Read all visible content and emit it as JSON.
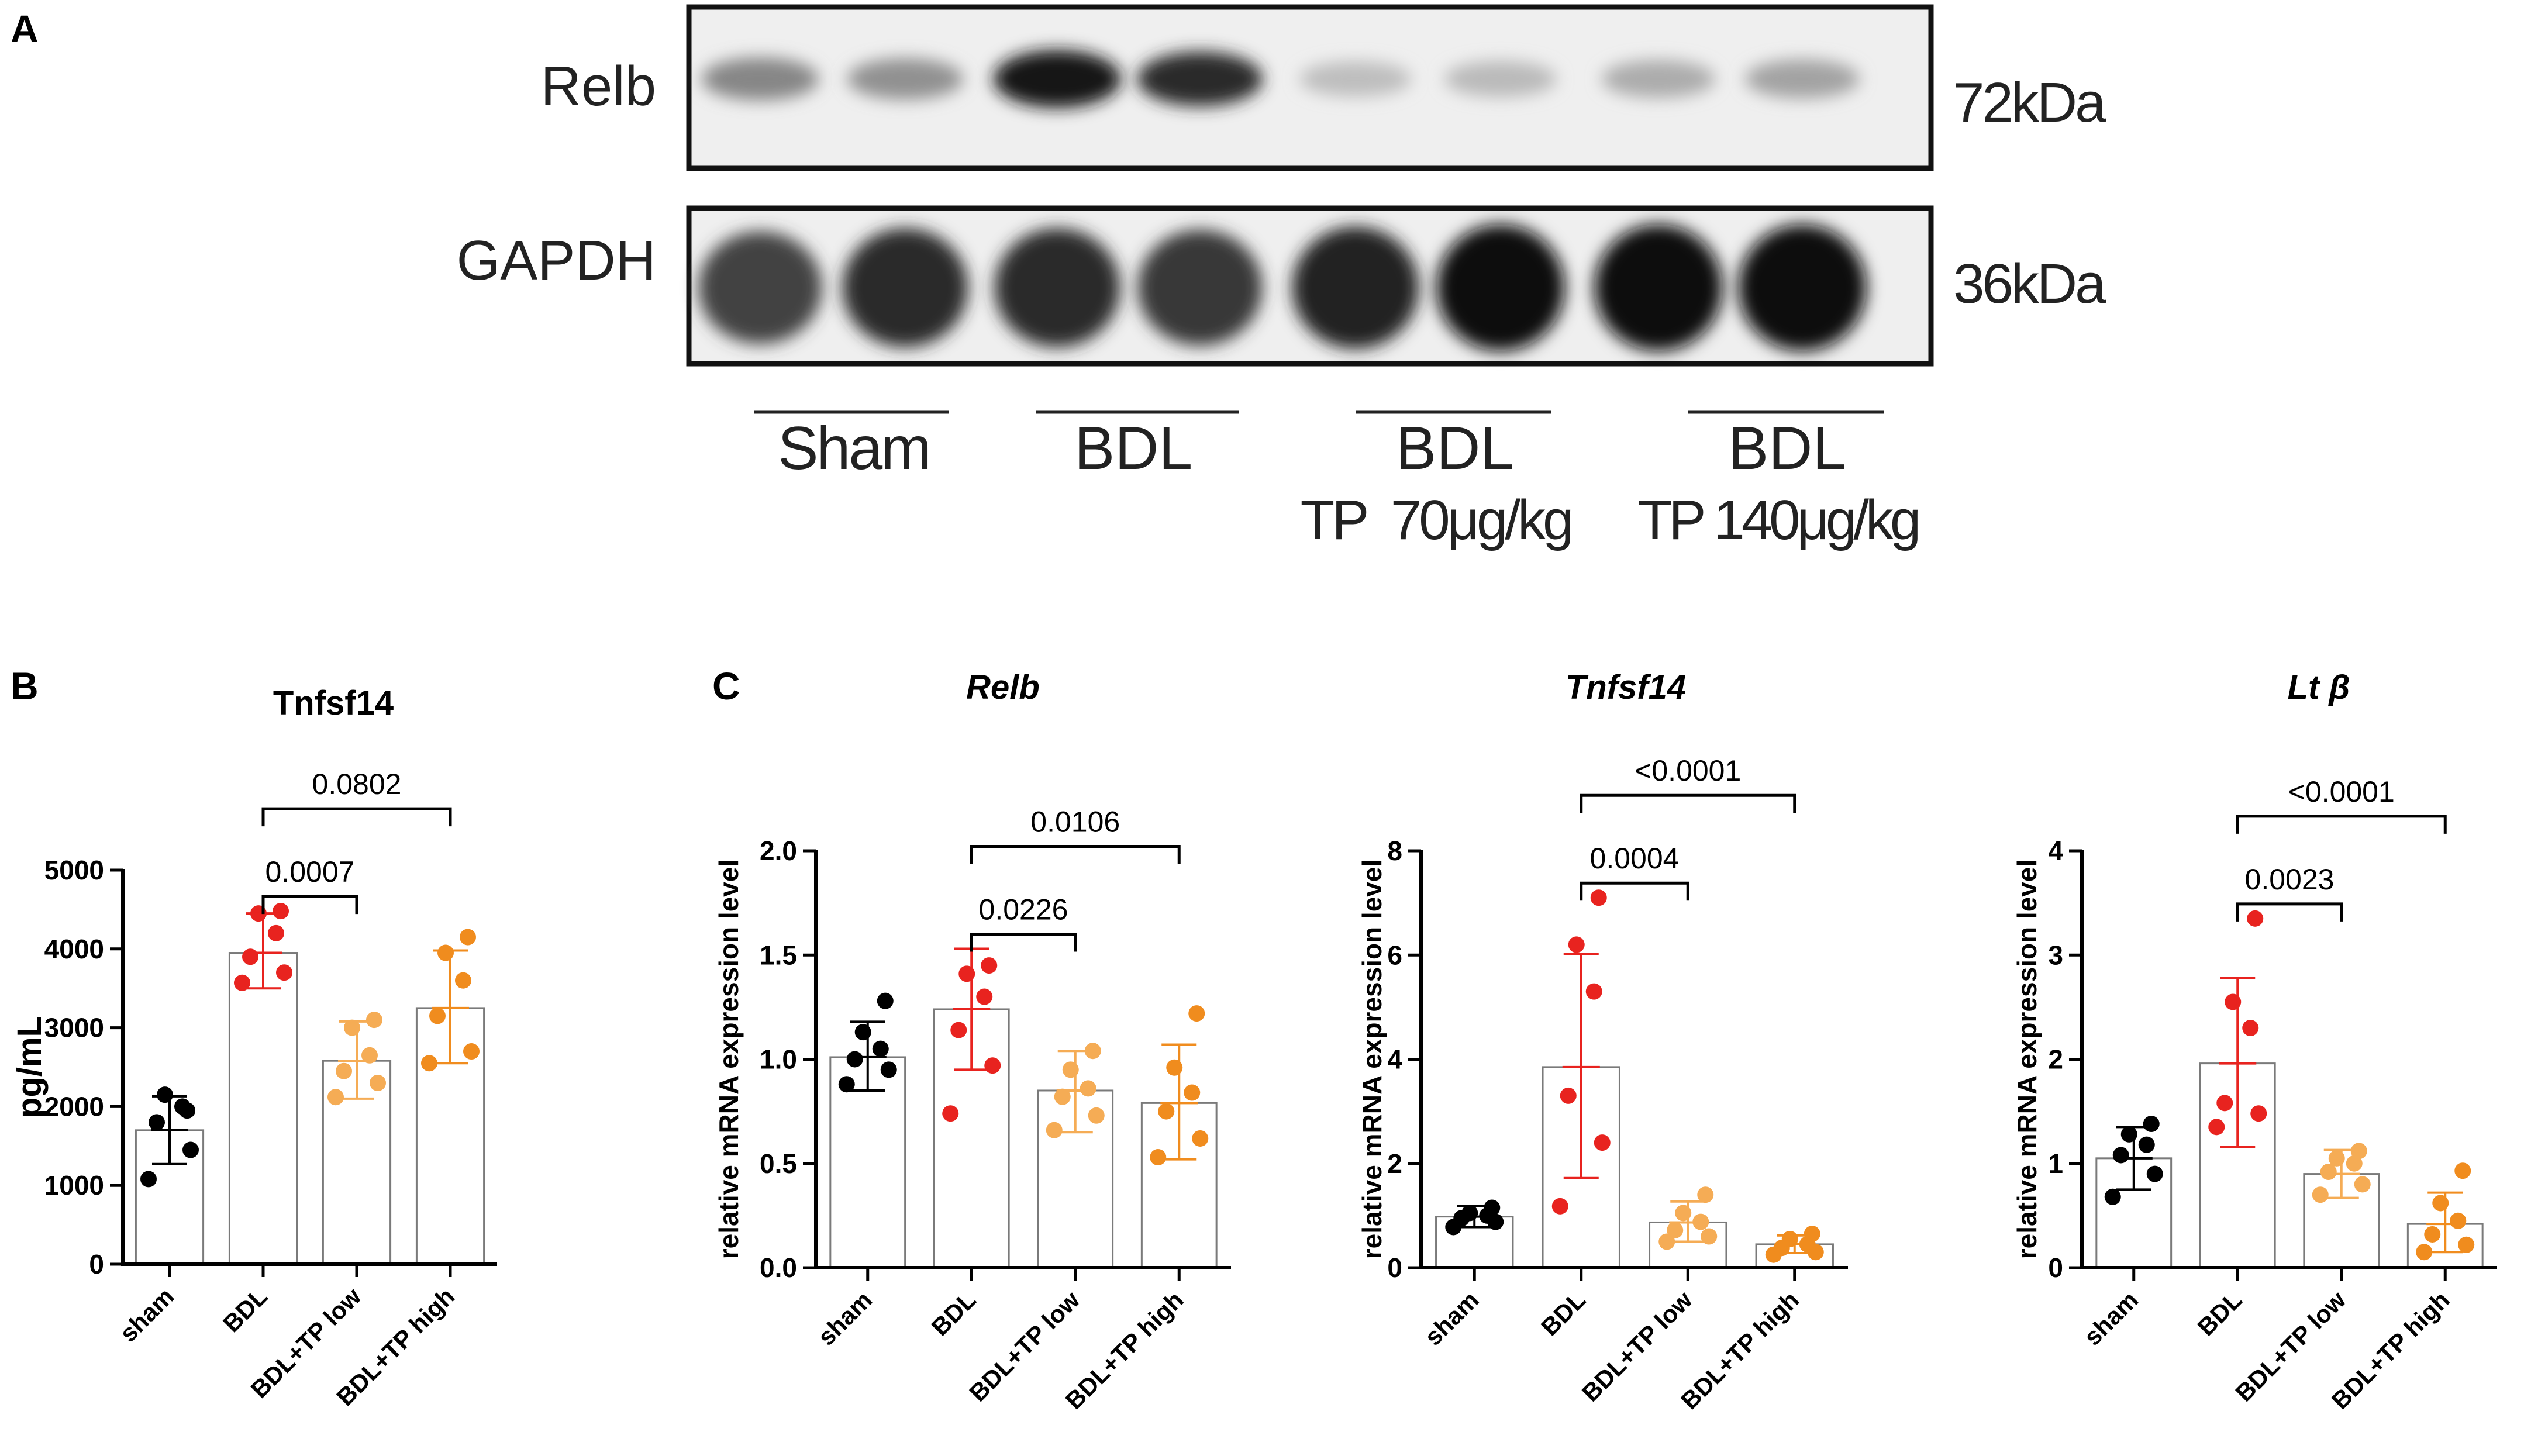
{
  "panels": {
    "a": "A",
    "b": "B",
    "c": "C"
  },
  "blot": {
    "rows": [
      {
        "protein": "Relb",
        "size": "72kDa",
        "band_intensity": [
          0.45,
          0.4,
          0.95,
          0.85,
          0.2,
          0.22,
          0.28,
          0.32
        ]
      },
      {
        "protein": "GAPDH",
        "size": "36kDa",
        "band_intensity": [
          0.75,
          0.85,
          0.85,
          0.8,
          0.9,
          0.97,
          0.97,
          0.97
        ]
      }
    ],
    "groups": [
      {
        "line1": "Sham",
        "line2": ""
      },
      {
        "line1": "BDL",
        "line2": ""
      },
      {
        "line1": "BDL",
        "line2": "TP  70μg/kg"
      },
      {
        "line1": "BDL",
        "line2": "TP 140μg/kg"
      }
    ]
  },
  "chart_data": [
    {
      "type": "bar",
      "title": "Tnfsf14",
      "title_italic": false,
      "ylabel": "pg/mL",
      "categories": [
        "sham",
        "BDL",
        "BDL+TP low",
        "BDL+TP high"
      ],
      "ylim": [
        0,
        5000
      ],
      "yticks": [
        "0",
        "1000",
        "2000",
        "3000",
        "4000",
        "5000"
      ],
      "values": [
        1700,
        3950,
        2580,
        3250
      ],
      "sd_lower": [
        1270,
        3500,
        2100,
        2550
      ],
      "sd_upper": [
        2130,
        4450,
        3080,
        3980
      ],
      "points": [
        [
          1080,
          1450,
          1800,
          2000,
          2150,
          1950
        ],
        [
          3570,
          3700,
          3900,
          4200,
          4450,
          4480
        ],
        [
          2120,
          2300,
          2450,
          2650,
          3000,
          3100
        ],
        [
          2550,
          2700,
          3150,
          3600,
          3950,
          4150
        ]
      ],
      "comparisons": [
        {
          "label": "0.0007",
          "from": 1,
          "to": 2
        },
        {
          "label": "0.0802",
          "from": 1,
          "to": 3
        }
      ]
    },
    {
      "type": "bar",
      "title": "Relb",
      "title_italic": true,
      "ylabel": "relative mRNA expression level",
      "categories": [
        "sham",
        "BDL",
        "BDL+TP low",
        "BDL+TP high"
      ],
      "ylim": [
        0,
        2.0
      ],
      "yticks": [
        "0.0",
        "0.5",
        "1.0",
        "1.5",
        "2.0"
      ],
      "values": [
        1.01,
        1.24,
        0.85,
        0.79
      ],
      "sd_lower": [
        0.85,
        0.95,
        0.65,
        0.52
      ],
      "sd_upper": [
        1.18,
        1.53,
        1.04,
        1.07
      ],
      "points": [
        [
          0.88,
          0.95,
          1.0,
          1.05,
          1.13,
          1.28
        ],
        [
          0.74,
          0.97,
          1.14,
          1.3,
          1.41,
          1.45
        ],
        [
          0.66,
          0.73,
          0.82,
          0.86,
          0.95,
          1.04
        ],
        [
          0.53,
          0.62,
          0.75,
          0.84,
          0.96,
          1.22
        ]
      ],
      "comparisons": [
        {
          "label": "0.0226",
          "from": 1,
          "to": 2
        },
        {
          "label": "0.0106",
          "from": 1,
          "to": 3
        }
      ]
    },
    {
      "type": "bar",
      "title": "Tnfsf14",
      "title_italic": true,
      "ylabel": "relative mRNA expression level",
      "categories": [
        "sham",
        "BDL",
        "BDL+TP low",
        "BDL+TP high"
      ],
      "ylim": [
        0,
        8
      ],
      "yticks": [
        "0",
        "2",
        "4",
        "6",
        "8"
      ],
      "values": [
        0.98,
        3.85,
        0.87,
        0.45
      ],
      "sd_lower": [
        0.78,
        1.72,
        0.5,
        0.28
      ],
      "sd_upper": [
        1.18,
        6.02,
        1.27,
        0.62
      ],
      "points": [
        [
          0.78,
          0.88,
          0.95,
          1.0,
          1.05,
          1.15
        ],
        [
          1.18,
          2.4,
          3.3,
          5.3,
          6.2,
          7.1
        ],
        [
          0.5,
          0.6,
          0.72,
          0.88,
          1.05,
          1.4
        ],
        [
          0.25,
          0.3,
          0.38,
          0.45,
          0.55,
          0.65
        ]
      ],
      "comparisons": [
        {
          "label": "0.0004",
          "from": 1,
          "to": 2
        },
        {
          "label": "<0.0001",
          "from": 1,
          "to": 3
        }
      ]
    },
    {
      "type": "bar",
      "title": "Lt β",
      "title_italic": true,
      "ylabel": "relative mRNA expression level",
      "categories": [
        "sham",
        "BDL",
        "BDL+TP low",
        "BDL+TP high"
      ],
      "ylim": [
        0,
        4
      ],
      "yticks": [
        "0",
        "1",
        "2",
        "3",
        "4"
      ],
      "values": [
        1.05,
        1.96,
        0.9,
        0.42
      ],
      "sd_lower": [
        0.75,
        1.16,
        0.67,
        0.15
      ],
      "sd_upper": [
        1.35,
        2.78,
        1.13,
        0.72
      ],
      "points": [
        [
          0.68,
          0.9,
          1.08,
          1.18,
          1.28,
          1.38
        ],
        [
          1.35,
          1.48,
          1.58,
          2.3,
          2.55,
          3.35
        ],
        [
          0.7,
          0.8,
          0.92,
          1.0,
          1.05,
          1.12
        ],
        [
          0.15,
          0.22,
          0.32,
          0.45,
          0.62,
          0.93
        ]
      ],
      "comparisons": [
        {
          "label": "0.0023",
          "from": 1,
          "to": 2
        },
        {
          "label": "<0.0001",
          "from": 1,
          "to": 3
        }
      ]
    }
  ],
  "colors": {
    "sham": "#000000",
    "BDL": "#e8231f",
    "BDL+TP low": "#f5ac55",
    "BDL+TP high": "#f08c1e",
    "axis": "#000000",
    "bar_fill": "#ffffff",
    "bar_stroke": "#7a7a7a"
  }
}
